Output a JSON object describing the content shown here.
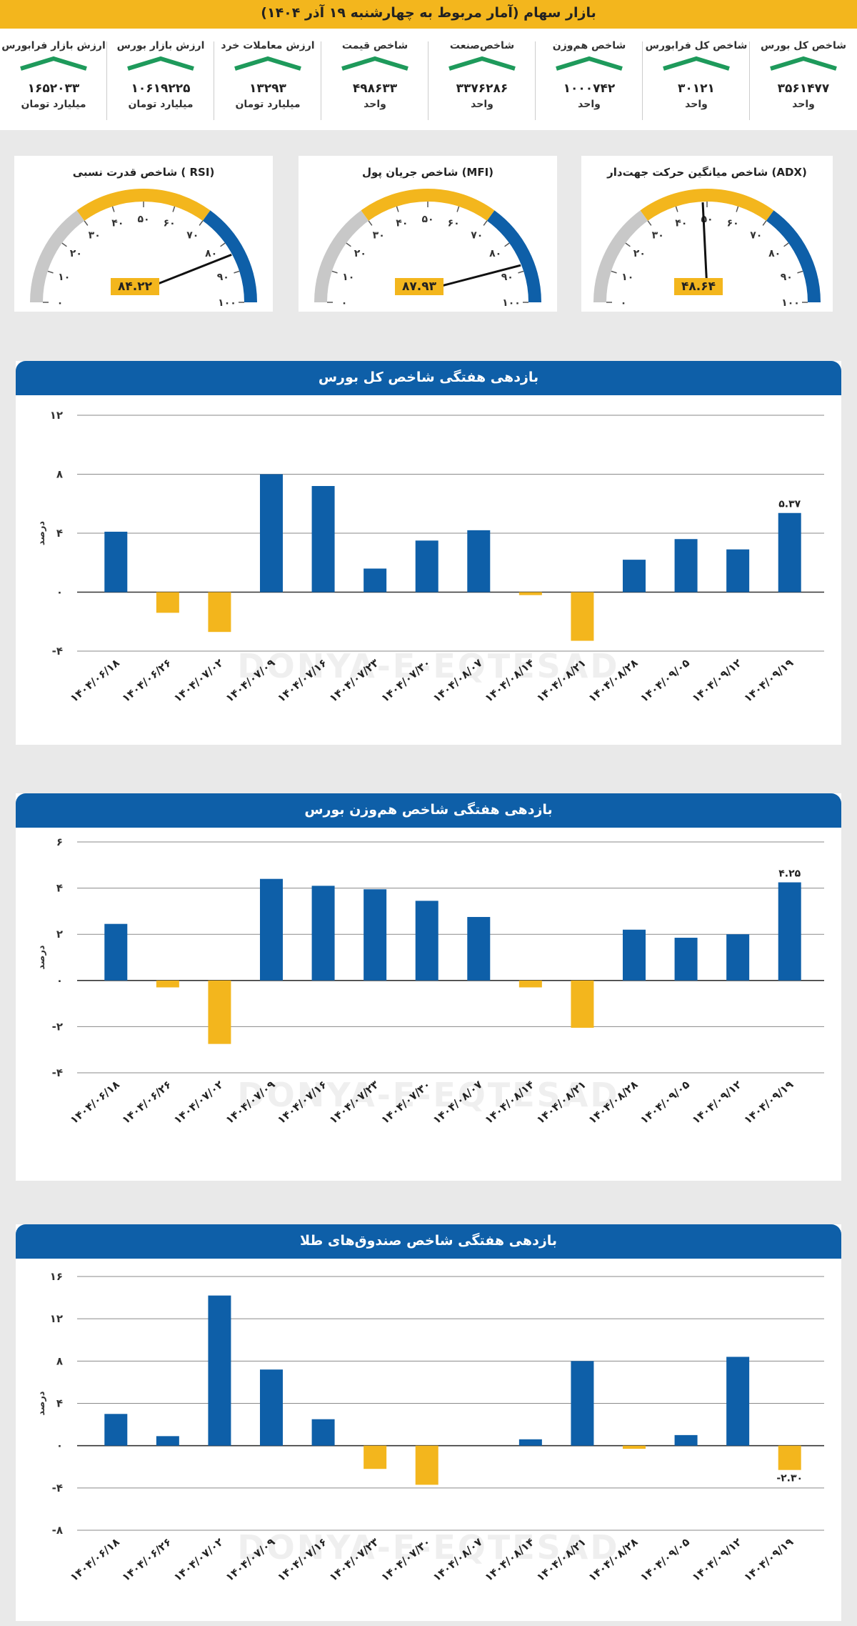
{
  "header": {
    "title": "بازار سهام (آمار مربوط به چهارشنبه ۱۹ آذر ۱۴۰۴)"
  },
  "colors": {
    "blue": "#0e5fa8",
    "yellow": "#f3b61d",
    "green": "#1e9a5b",
    "gray": "#c8c8c8"
  },
  "stats": [
    {
      "label": "شاخص کل بورس",
      "value": "۳۵۶۱۴۷۷",
      "unit": "واحد",
      "trend": "up"
    },
    {
      "label": "شاخص کل فرابورس",
      "value": "۳۰۱۲۱",
      "unit": "واحد",
      "trend": "up"
    },
    {
      "label": "شاخص هم‌وزن",
      "value": "۱۰۰۰۷۴۲",
      "unit": "واحد",
      "trend": "up"
    },
    {
      "label": "شاخص‌صنعت",
      "value": "۳۳۷۶۲۸۶",
      "unit": "واحد",
      "trend": "up"
    },
    {
      "label": "شاخص قیمت",
      "value": "۴۹۸۶۳۳",
      "unit": "واحد",
      "trend": "up"
    },
    {
      "label": "ارزش معاملات خرد",
      "value": "۱۳۲۹۳",
      "unit": "میلیارد تومان",
      "trend": "up"
    },
    {
      "label": "ارزش بازار بورس",
      "value": "۱۰۶۱۹۲۲۵",
      "unit": "میلیارد تومان",
      "trend": "up"
    },
    {
      "label": "ارزش بازار فرابورس",
      "value": "۱۶۵۲۰۳۳",
      "unit": "میلیارد تومان",
      "trend": "up"
    }
  ],
  "gauges": [
    {
      "title": "شاخص میانگین حرکت جهت‌دار (ADX)",
      "value": 48.64,
      "value_label": "۴۸.۶۴"
    },
    {
      "title": "شاخص جریان پول (MFI)",
      "value": 87.93,
      "value_label": "۸۷.۹۳"
    },
    {
      "title": "شاخص قدرت نسبی ( RSI)",
      "value": 84.22,
      "value_label": "۸۴.۲۲"
    }
  ],
  "gauge_ticks": [
    "۰",
    "۱۰",
    "۲۰",
    "۳۰",
    "۴۰",
    "۵۰",
    "۶۰",
    "۷۰",
    "۸۰",
    "۹۰",
    "۱۰۰"
  ],
  "watermark": {
    "text": "DONYA-E-EQTESAD"
  },
  "chart_data": [
    {
      "type": "bar",
      "title": "بازدهی هفتگی شاخص کل بورس",
      "ylabel": "درصد",
      "categories": [
        "۱۴۰۴/۰۶/۱۸",
        "۱۴۰۴/۰۶/۲۶",
        "۱۴۰۴/۰۷/۰۲",
        "۱۴۰۴/۰۷/۰۹",
        "۱۴۰۴/۰۷/۱۶",
        "۱۴۰۴/۰۷/۲۳",
        "۱۴۰۴/۰۷/۳۰",
        "۱۴۰۴/۰۸/۰۷",
        "۱۴۰۴/۰۸/۱۴",
        "۱۴۰۴/۰۸/۲۱",
        "۱۴۰۴/۰۸/۲۸",
        "۱۴۰۴/۰۹/۰۵",
        "۱۴۰۴/۰۹/۱۲",
        "۱۴۰۴/۰۹/۱۹"
      ],
      "values": [
        4.1,
        -1.4,
        -2.7,
        8.0,
        7.2,
        1.6,
        3.5,
        4.2,
        -0.2,
        -3.3,
        2.2,
        3.6,
        2.9,
        5.37
      ],
      "ylim": [
        -4,
        12
      ],
      "yticks": [
        -4,
        0,
        4,
        8,
        12
      ],
      "ytick_labels": [
        "-۴",
        "۰",
        "۴",
        "۸",
        "۱۲"
      ],
      "annotation": {
        "index": 13,
        "label": "۵.۳۷"
      }
    },
    {
      "type": "bar",
      "title": "بازدهی هفتگی شاخص هم‌وزن بورس",
      "ylabel": "درصد",
      "categories": [
        "۱۴۰۴/۰۶/۱۸",
        "۱۴۰۴/۰۶/۲۶",
        "۱۴۰۴/۰۷/۰۲",
        "۱۴۰۴/۰۷/۰۹",
        "۱۴۰۴/۰۷/۱۶",
        "۱۴۰۴/۰۷/۲۳",
        "۱۴۰۴/۰۷/۳۰",
        "۱۴۰۴/۰۸/۰۷",
        "۱۴۰۴/۰۸/۱۴",
        "۱۴۰۴/۰۸/۲۱",
        "۱۴۰۴/۰۸/۲۸",
        "۱۴۰۴/۰۹/۰۵",
        "۱۴۰۴/۰۹/۱۲",
        "۱۴۰۴/۰۹/۱۹"
      ],
      "values": [
        2.45,
        -0.3,
        -2.75,
        4.4,
        4.1,
        3.95,
        3.45,
        2.75,
        -0.3,
        -2.05,
        2.2,
        1.85,
        2.0,
        4.25
      ],
      "ylim": [
        -4,
        6
      ],
      "yticks": [
        -4,
        -2,
        0,
        2,
        4,
        6
      ],
      "ytick_labels": [
        "-۴",
        "-۲",
        "۰",
        "۲",
        "۴",
        "۶"
      ],
      "annotation": {
        "index": 13,
        "label": "۴.۲۵"
      }
    },
    {
      "type": "bar",
      "title": "بازدهی هفتگی شاخص صندوق‌های طلا",
      "ylabel": "درصد",
      "categories": [
        "۱۴۰۴/۰۶/۱۸",
        "۱۴۰۴/۰۶/۲۶",
        "۱۴۰۴/۰۷/۰۲",
        "۱۴۰۴/۰۷/۰۹",
        "۱۴۰۴/۰۷/۱۶",
        "۱۴۰۴/۰۷/۲۳",
        "۱۴۰۴/۰۷/۳۰",
        "۱۴۰۴/۰۸/۰۷",
        "۱۴۰۴/۰۸/۱۴",
        "۱۴۰۴/۰۸/۲۱",
        "۱۴۰۴/۰۸/۲۸",
        "۱۴۰۴/۰۹/۰۵",
        "۱۴۰۴/۰۹/۱۲",
        "۱۴۰۴/۰۹/۱۹"
      ],
      "values": [
        3.0,
        0.9,
        14.2,
        7.2,
        2.5,
        -2.2,
        -3.7,
        0.0,
        0.6,
        8.0,
        -0.3,
        1.0,
        8.4,
        -2.3
      ],
      "ylim": [
        -8,
        16
      ],
      "yticks": [
        -8,
        -4,
        0,
        4,
        8,
        12,
        16
      ],
      "ytick_labels": [
        "-۸",
        "-۴",
        "۰",
        "۴",
        "۸",
        "۱۲",
        "۱۶"
      ],
      "annotation": {
        "index": 13,
        "label": "-۲.۳۰"
      }
    }
  ]
}
